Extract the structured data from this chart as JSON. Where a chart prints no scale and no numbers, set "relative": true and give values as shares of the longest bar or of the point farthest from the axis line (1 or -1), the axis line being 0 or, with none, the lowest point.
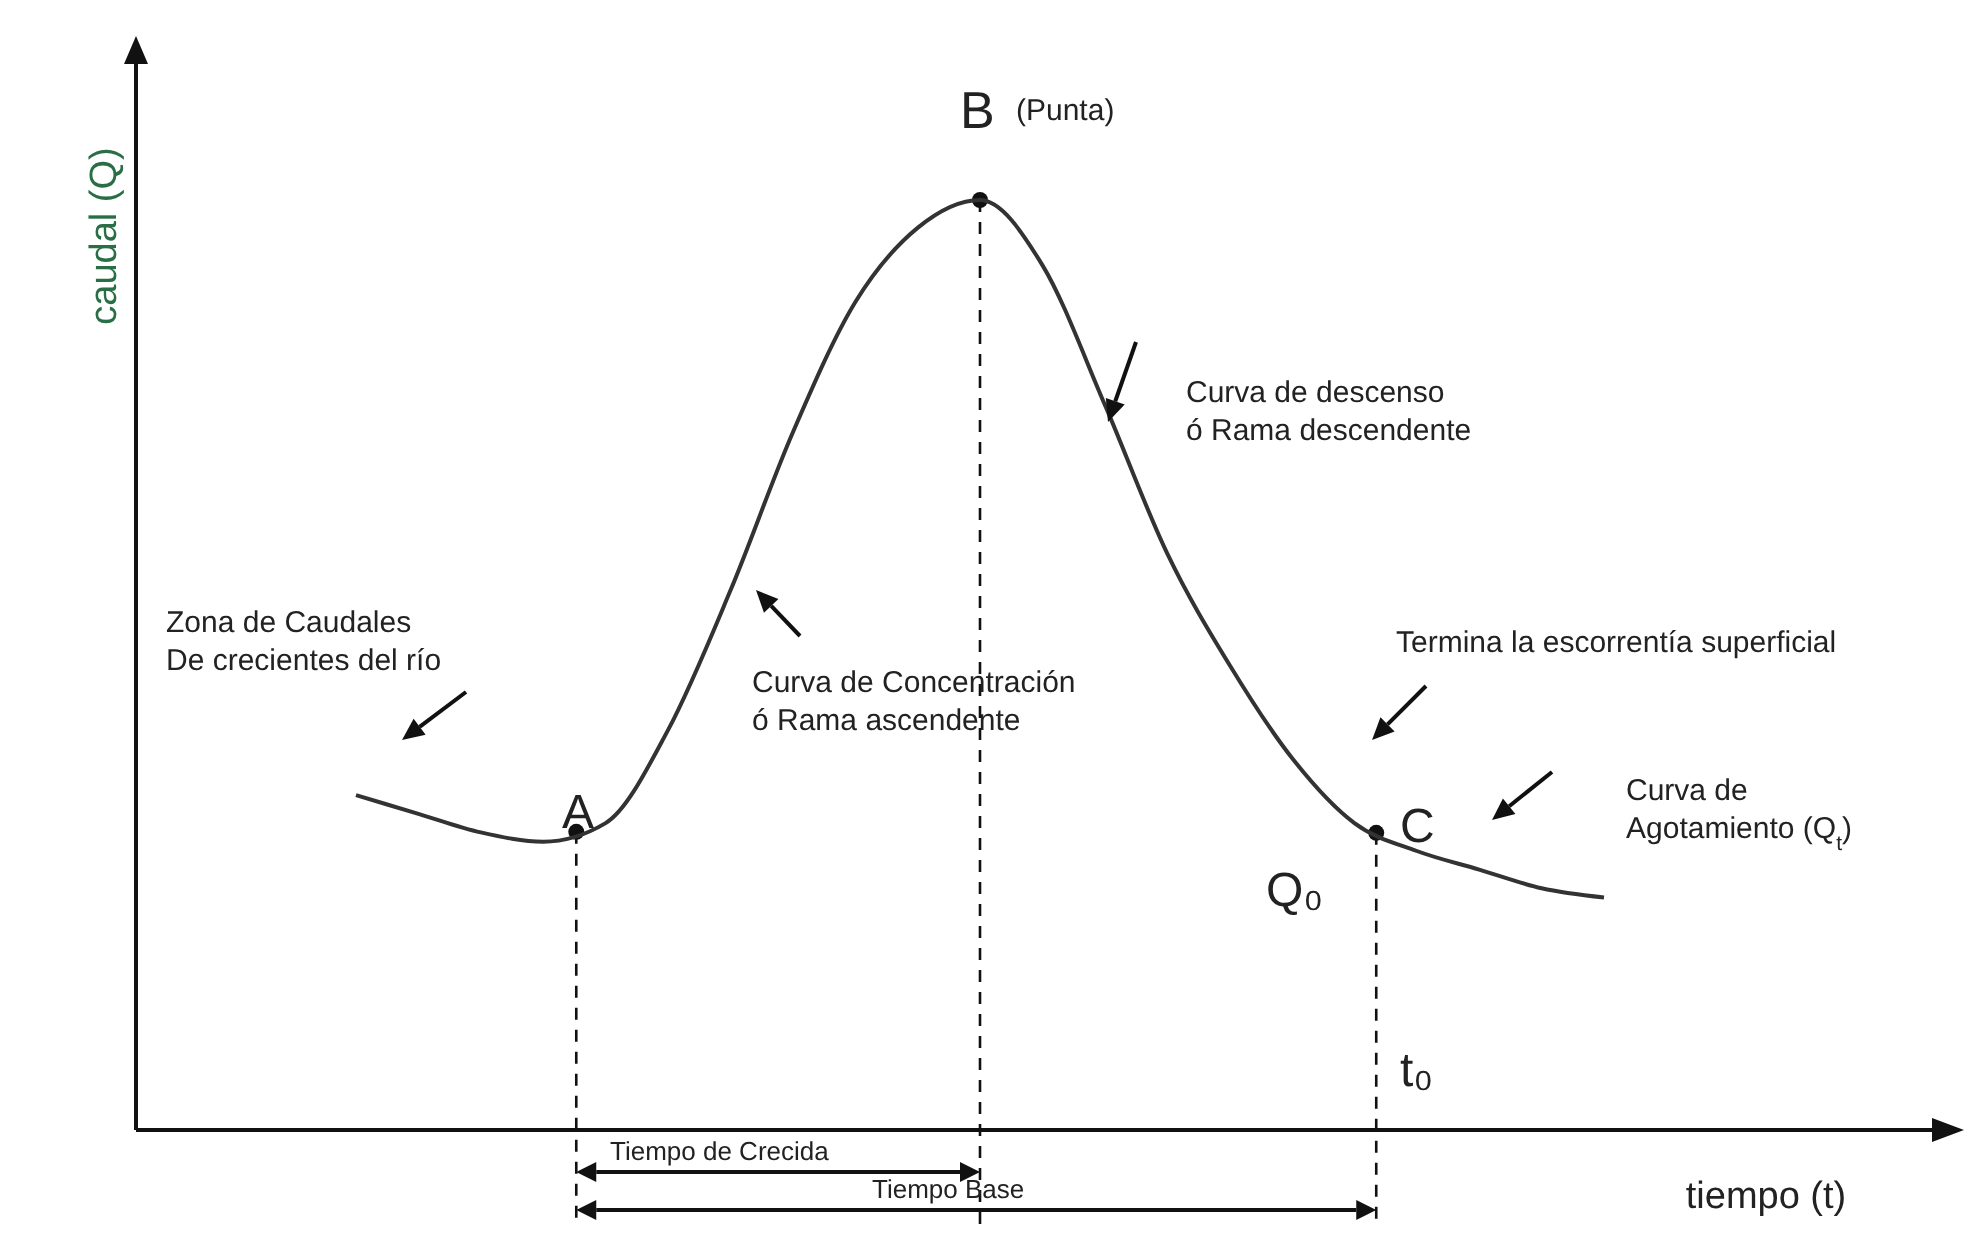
{
  "chart_data": {
    "type": "line",
    "relative": true,
    "xlabel": "tiempo (t)",
    "categories": [
      null,
      null,
      null,
      null,
      null,
      null,
      null,
      null,
      null,
      null,
      null,
      null,
      null,
      null,
      null,
      null,
      null,
      null,
      null,
      null,
      null
    ],
    "series": [
      {
        "color": "#333333",
        "values": [
          0.36,
          0.34,
          0.32,
          0.31,
          0.33,
          0.43,
          0.58,
          0.75,
          0.89,
          0.97,
          1,
          0.93,
          0.78,
          0.62,
          0.5,
          0.4,
          0.33,
          0.3,
          0.28,
          0.26,
          0.25
        ]
      }
    ],
    "annotations": [
      "Zona de Caudales\nDe crecientes del río",
      "Curva de Concentración\nó Rama ascendente",
      "Curva de descenso\nó Rama descendente",
      "Termina la escorrentía superficial",
      "Curva de\nAgotamiento (Q$_{t}$)",
      "A",
      "B",
      "(Punta)",
      "C",
      "Q₀",
      "t₀",
      "Tiempo de Crecida",
      "Tiempo Base",
      "caudal (Q)"
    ]
  }
}
